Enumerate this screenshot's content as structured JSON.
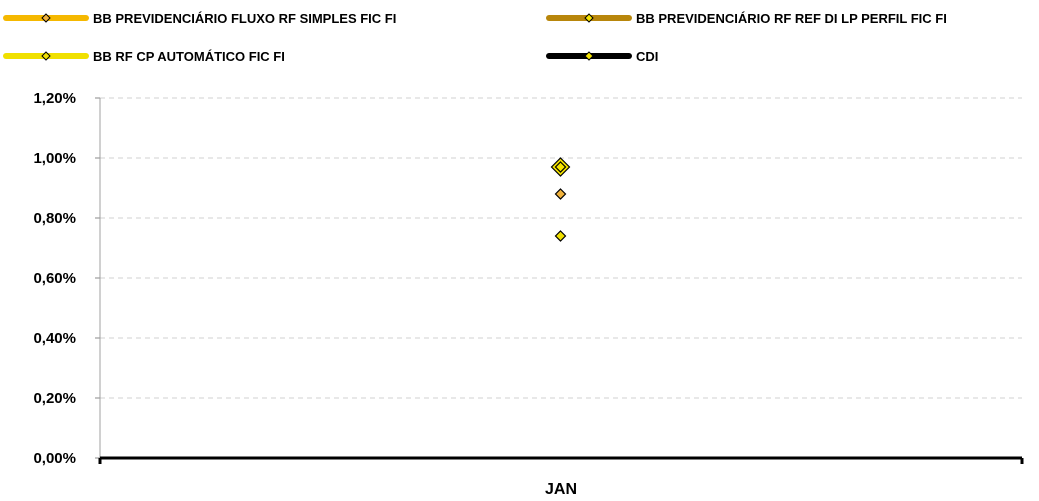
{
  "chart_data": {
    "type": "line",
    "categories": [
      "JAN"
    ],
    "series": [
      {
        "name": "BB PREVIDENCIÁRIO FLUXO RF SIMPLES FIC FI",
        "values": [
          0.88
        ],
        "color": "#f5b800",
        "marker_fill": "#f0b23c"
      },
      {
        "name": "BB PREVIDENCIÁRIO RF REF DI LP PERFIL FIC FI",
        "values": [
          0.97
        ],
        "color": "#b8860b",
        "marker_fill": "#f5e400"
      },
      {
        "name": "BB RF CP AUTOMÁTICO FIC FI",
        "values": [
          0.74
        ],
        "color": "#f0e000",
        "marker_fill": "#f0e000"
      },
      {
        "name": "CDI",
        "values": [
          0.97
        ],
        "color": "#000000",
        "marker_fill": "#f5e400"
      }
    ],
    "ylim": [
      0,
      1.2
    ],
    "yticks": [
      "0,00%",
      "0,20%",
      "0,40%",
      "0,60%",
      "0,80%",
      "1,00%",
      "1,20%"
    ],
    "grid": true,
    "legend_position": "top",
    "xlabel": "",
    "ylabel": ""
  }
}
